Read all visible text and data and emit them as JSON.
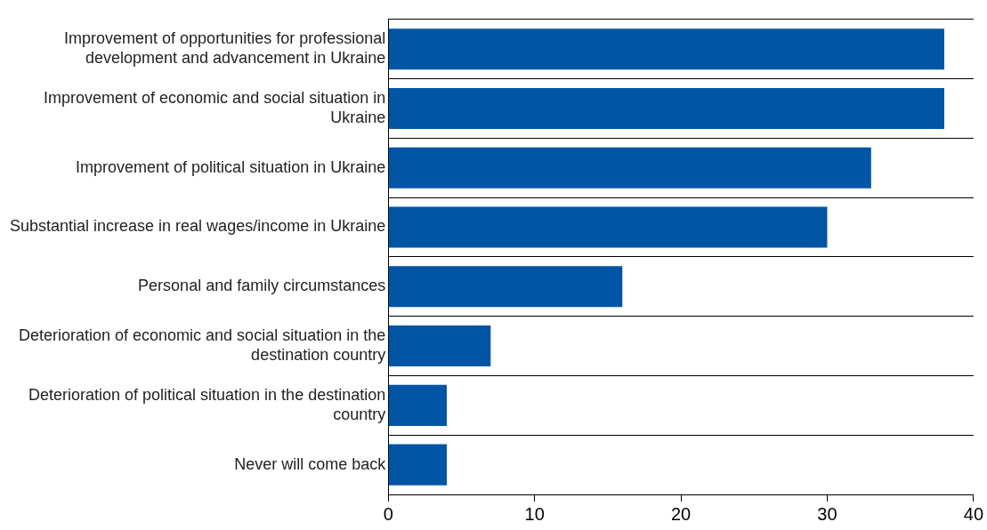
{
  "chart_data": {
    "type": "bar",
    "orientation": "horizontal",
    "categories": [
      "Improvement of opportunities for professional development and advancement in Ukraine",
      "Improvement of economic and social situation in Ukraine",
      "Improvement of political situation in Ukraine",
      "Substantial increase in real wages/income in Ukraine",
      "Personal and family circumstances",
      "Deterioration of economic and social situation in the destination country",
      "Deterioration of political situation in the destination country",
      "Never will come back"
    ],
    "values": [
      38,
      38,
      33,
      30,
      16,
      7,
      4,
      4
    ],
    "color": "#0055a5",
    "xlim": [
      0,
      40
    ],
    "xticks": [
      0,
      10,
      20,
      30,
      40
    ],
    "grid": "y",
    "legend": false
  }
}
